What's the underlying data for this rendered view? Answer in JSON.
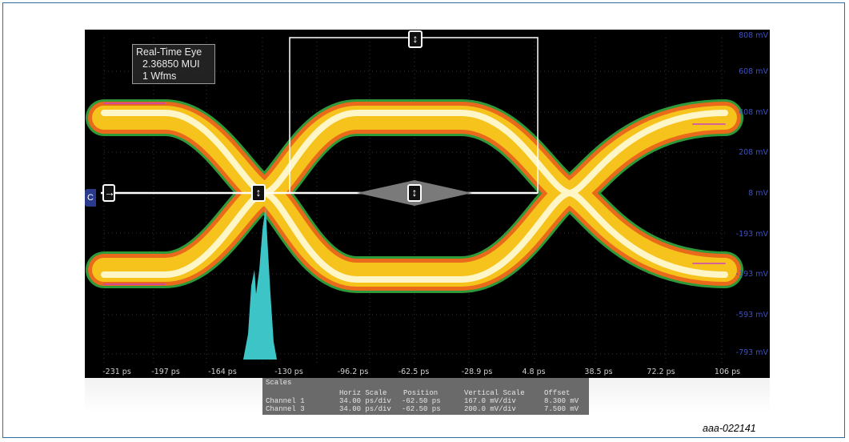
{
  "info_box": {
    "title": "Real-Time Eye",
    "mui": "2.36850 MUI",
    "wfms": "1 Wfms"
  },
  "y_axis": {
    "labels": [
      "808 mV",
      "608 mV",
      "408 mV",
      "208 mV",
      "8 mV",
      "-193 mV",
      "-393 mV",
      "-593 mV",
      "-793 mV"
    ]
  },
  "x_axis": {
    "labels": [
      "-231 ps",
      "-197 ps",
      "-164 ps",
      "-130 ps",
      "-96.2 ps",
      "-62.5 ps",
      "-28.9 ps",
      "4.8 ps",
      "38.5 ps",
      "72.2 ps",
      "106 ps"
    ]
  },
  "channel_marker": "C",
  "scales_panel": {
    "title": "Scales",
    "headers": [
      "Horiz Scale",
      "Position",
      "Vertical Scale",
      "Offset"
    ],
    "rows": [
      {
        "name": "Channel 1",
        "horiz": "34.00 ps/div",
        "position": "-62.50 ps",
        "vertical": "167.0 mV/div",
        "offset": "8.300 mV"
      },
      {
        "name": "Channel 3",
        "horiz": "34.00 ps/div",
        "position": "-62.50 ps",
        "vertical": "200.0 mV/div",
        "offset": "7.500 mV"
      }
    ]
  },
  "figure_id": "aaa-022141",
  "colors": {
    "eye_outer": "#2e9a3a",
    "eye_mid": "#e86a1a",
    "eye_inner": "#f6c21c",
    "eye_core": "#ffffff",
    "histogram": "#3cc4c6",
    "axis_label": "#3e4fc0"
  }
}
